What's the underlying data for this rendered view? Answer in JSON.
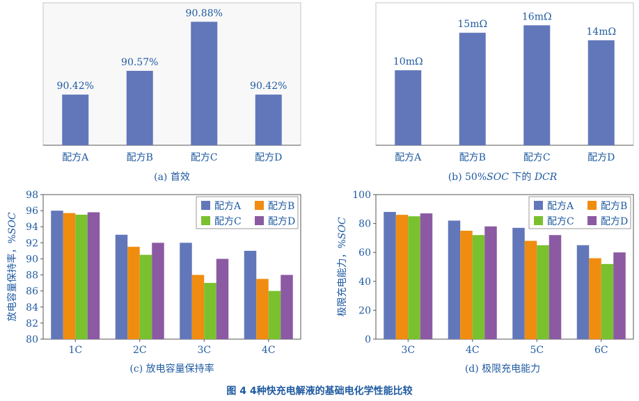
{
  "figure_title": "图 4  4种快充电解液的基础电化学性能比较",
  "colors": {
    "A": "#6277ba",
    "B": "#f08c0f",
    "C": "#79c12e",
    "D": "#8b5aa3",
    "bar": "#6277ba",
    "text_blue": "#1f5aa0"
  },
  "chart_data": [
    {
      "id": "a",
      "type": "bar",
      "caption": "(a)  首效",
      "categories": [
        "配方A",
        "配方B",
        "配方C",
        "配方D"
      ],
      "values": [
        90.42,
        90.57,
        90.88,
        90.42
      ],
      "value_labels": [
        "90.42%",
        "90.57%",
        "90.88%",
        "90.42%"
      ],
      "ylim": [
        90.1,
        91.0
      ],
      "y_axis_visible": false,
      "grid": false
    },
    {
      "id": "b",
      "type": "bar",
      "caption_prefix": "(b)  50%",
      "caption_italic1": "SOC",
      "caption_mid": " 下的 ",
      "caption_italic2": "DCR",
      "categories": [
        "配方A",
        "配方B",
        "配方C",
        "配方D"
      ],
      "values": [
        10,
        15,
        16,
        14
      ],
      "value_labels": [
        "10mΩ",
        "15mΩ",
        "16mΩ",
        "14mΩ"
      ],
      "ylim": [
        0,
        19
      ],
      "y_axis_visible": false,
      "grid": false
    },
    {
      "id": "c",
      "type": "bar",
      "caption": "(c)  放电容量保持率",
      "ylabel_prefix": "放电容量保持率，%",
      "ylabel_italic": "SOC",
      "categories": [
        "1C",
        "2C",
        "3C",
        "4C"
      ],
      "series": [
        {
          "name": "配方A",
          "values": [
            96,
            93,
            92,
            91
          ]
        },
        {
          "name": "配方B",
          "values": [
            95.7,
            91.5,
            88,
            87.5
          ]
        },
        {
          "name": "配方C",
          "values": [
            95.5,
            90.5,
            87,
            86
          ]
        },
        {
          "name": "配方D",
          "values": [
            95.8,
            92,
            90,
            88
          ]
        }
      ],
      "ylim": [
        80,
        98
      ],
      "yticks": [
        80,
        82,
        84,
        86,
        88,
        90,
        92,
        94,
        96,
        98
      ],
      "legend": "top-right",
      "grid": false
    },
    {
      "id": "d",
      "type": "bar",
      "caption": "(d)  极限充电能力",
      "ylabel_prefix": "极限充电能力，%",
      "ylabel_italic": "SOC",
      "categories": [
        "3C",
        "4C",
        "5C",
        "6C"
      ],
      "series": [
        {
          "name": "配方A",
          "values": [
            88,
            82,
            77,
            65
          ]
        },
        {
          "name": "配方B",
          "values": [
            86,
            75,
            68,
            56
          ]
        },
        {
          "name": "配方C",
          "values": [
            85,
            72,
            65,
            52
          ]
        },
        {
          "name": "配方D",
          "values": [
            87,
            78,
            72,
            60
          ]
        }
      ],
      "ylim": [
        0,
        100
      ],
      "yticks": [
        0,
        20,
        40,
        60,
        80,
        100
      ],
      "legend": "top-right",
      "grid": false
    }
  ]
}
